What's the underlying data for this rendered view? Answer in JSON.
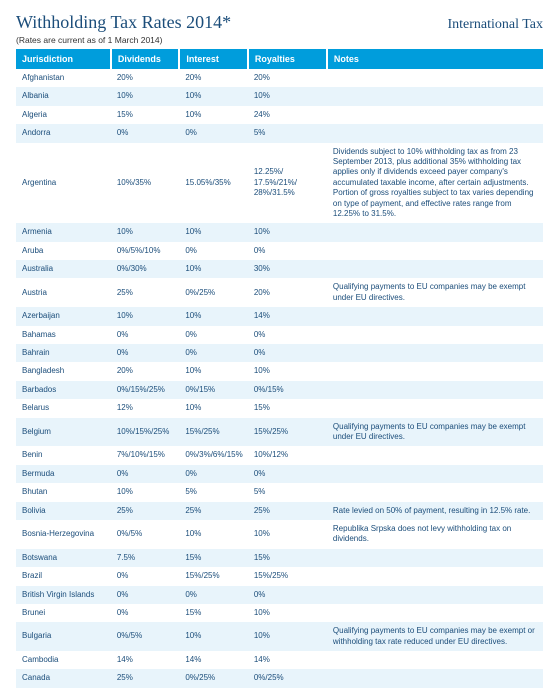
{
  "header": {
    "title": "Withholding Tax Rates 2014*",
    "right": "International Tax",
    "asof": "(Rates are current as of 1 March 2014)"
  },
  "table": {
    "header_bg": "#009ddc",
    "header_fg": "#ffffff",
    "row_odd_bg": "#ffffff",
    "row_even_bg": "#e8f4fb",
    "text_color": "#1b4d7a",
    "columns": [
      "Jurisdiction",
      "Dividends",
      "Interest",
      "Royalties",
      "Notes"
    ],
    "rows": [
      [
        "Afghanistan",
        "20%",
        "20%",
        "20%",
        ""
      ],
      [
        "Albania",
        "10%",
        "10%",
        "10%",
        ""
      ],
      [
        "Algeria",
        "15%",
        "10%",
        "24%",
        ""
      ],
      [
        "Andorra",
        "0%",
        "0%",
        "5%",
        ""
      ],
      [
        "Argentina",
        "10%/35%",
        "15.05%/35%",
        "12.25%/ 17.5%/21%/ 28%/31.5%",
        "Dividends subject to 10% withholding tax as from 23 September 2013, plus additional 35% withholding tax applies only if dividends exceed payer company's accumulated taxable income, after certain adjustments. Portion of gross royalties subject to tax varies depending on type of payment, and effective rates range from 12.25% to 31.5%."
      ],
      [
        "Armenia",
        "10%",
        "10%",
        "10%",
        ""
      ],
      [
        "Aruba",
        "0%/5%/10%",
        "0%",
        "0%",
        ""
      ],
      [
        "Australia",
        "0%/30%",
        "10%",
        "30%",
        ""
      ],
      [
        "Austria",
        "25%",
        "0%/25%",
        "20%",
        "Qualifying payments to EU companies may be exempt under EU directives."
      ],
      [
        "Azerbaijan",
        "10%",
        "10%",
        "14%",
        ""
      ],
      [
        "Bahamas",
        "0%",
        "0%",
        "0%",
        ""
      ],
      [
        "Bahrain",
        "0%",
        "0%",
        "0%",
        ""
      ],
      [
        "Bangladesh",
        "20%",
        "10%",
        "10%",
        ""
      ],
      [
        "Barbados",
        "0%/15%/25%",
        "0%/15%",
        "0%/15%",
        ""
      ],
      [
        "Belarus",
        "12%",
        "10%",
        "15%",
        ""
      ],
      [
        "Belgium",
        "10%/15%/25%",
        "15%/25%",
        "15%/25%",
        "Qualifying payments to EU companies may be exempt under EU directives."
      ],
      [
        "Benin",
        "7%/10%/15%",
        "0%/3%/6%/15%",
        "10%/12%",
        ""
      ],
      [
        "Bermuda",
        "0%",
        "0%",
        "0%",
        ""
      ],
      [
        "Bhutan",
        "10%",
        "5%",
        "5%",
        ""
      ],
      [
        "Bolivia",
        "25%",
        "25%",
        "25%",
        "Rate levied on 50% of payment, resulting in 12.5% rate."
      ],
      [
        "Bosnia-Herzegovina",
        "0%/5%",
        "10%",
        "10%",
        "Republika Srpska does not levy withholding tax on dividends."
      ],
      [
        "Botswana",
        "7.5%",
        "15%",
        "15%",
        ""
      ],
      [
        "Brazil",
        "0%",
        "15%/25%",
        "15%/25%",
        ""
      ],
      [
        "British Virgin Islands",
        "0%",
        "0%",
        "0%",
        ""
      ],
      [
        "Brunei",
        "0%",
        "15%",
        "10%",
        ""
      ],
      [
        "Bulgaria",
        "0%/5%",
        "10%",
        "10%",
        "Qualifying payments to EU companies may be exempt or withholding tax rate reduced under EU directives."
      ],
      [
        "Cambodia",
        "14%",
        "14%",
        "14%",
        ""
      ],
      [
        "Canada",
        "25%",
        "0%/25%",
        "0%/25%",
        ""
      ]
    ]
  }
}
